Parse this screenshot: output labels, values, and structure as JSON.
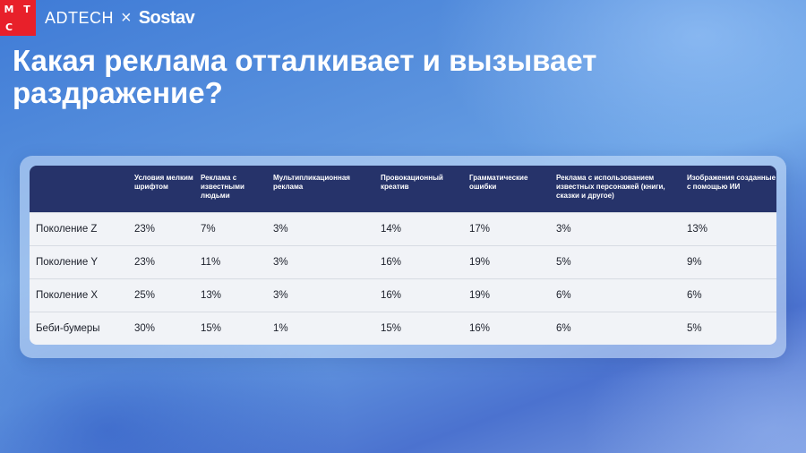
{
  "brand": {
    "logo_letters": [
      "М",
      "Т",
      "С",
      ""
    ],
    "adtech": "ADTECH",
    "times": "×",
    "sostav": "Sostav"
  },
  "title": "Какая реклама отталкивает и вызывает раздражение?",
  "table": {
    "headers": [
      "",
      "Условия мелким шрифтом",
      "Реклама с известными людьми",
      "Мультипликационная реклама",
      "Провокационный креатив",
      "Грамматические ошибки",
      "Реклама с использованием известных персонажей (книги, сказки и другое)",
      "Изображения созданные с помощью ИИ"
    ],
    "rows": [
      [
        "Поколение Z",
        "23%",
        "7%",
        "3%",
        "14%",
        "17%",
        "3%",
        "13%"
      ],
      [
        "Поколение Y",
        "23%",
        "11%",
        "3%",
        "16%",
        "19%",
        "5%",
        "9%"
      ],
      [
        "Поколение X",
        "25%",
        "13%",
        "3%",
        "16%",
        "19%",
        "6%",
        "6%"
      ],
      [
        "Беби-бумеры",
        "30%",
        "15%",
        "1%",
        "15%",
        "16%",
        "6%",
        "5%"
      ]
    ]
  }
}
